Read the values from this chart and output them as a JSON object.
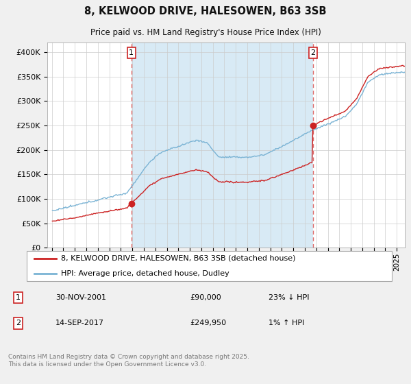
{
  "title": "8, KELWOOD DRIVE, HALESOWEN, B63 3SB",
  "subtitle": "Price paid vs. HM Land Registry's House Price Index (HPI)",
  "ylim": [
    0,
    420000
  ],
  "yticks": [
    0,
    50000,
    100000,
    150000,
    200000,
    250000,
    300000,
    350000,
    400000
  ],
  "ytick_labels": [
    "£0",
    "£50K",
    "£100K",
    "£150K",
    "£200K",
    "£250K",
    "£300K",
    "£350K",
    "£400K"
  ],
  "hpi_color": "#7ab3d4",
  "price_color": "#cc2222",
  "vline_color": "#dd6666",
  "shade_color": "#d8eaf5",
  "sale1_time": 2001.917,
  "sale2_time": 2017.708,
  "sale1_price": 90000,
  "sale2_price": 249950,
  "sale1_date": "30-NOV-2001",
  "sale2_date": "14-SEP-2017",
  "sale1_label": "23% ↓ HPI",
  "sale2_label": "1% ↑ HPI",
  "legend_price": "8, KELWOOD DRIVE, HALESOWEN, B63 3SB (detached house)",
  "legend_hpi": "HPI: Average price, detached house, Dudley",
  "footer": "Contains HM Land Registry data © Crown copyright and database right 2025.\nThis data is licensed under the Open Government Licence v3.0.",
  "bg_color": "#f0f0f0",
  "plot_bg_color": "#ffffff"
}
